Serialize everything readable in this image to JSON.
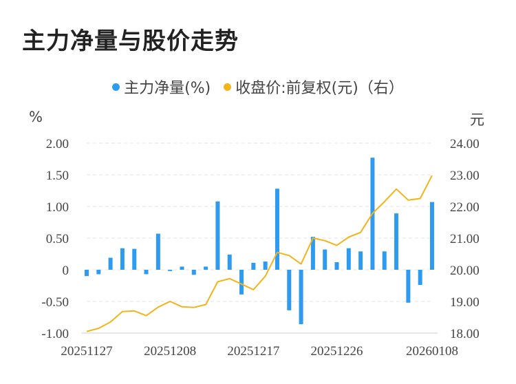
{
  "chart_data": {
    "type": "bar+line",
    "title": "主力净量与股价走势",
    "legend": [
      {
        "name": "主力净量(%)",
        "color": "#2e9bf0"
      },
      {
        "name": "收盘价:前复权(元)（右）",
        "color": "#f2b418"
      }
    ],
    "y_left_unit": "%",
    "y_right_unit": "元",
    "y_left": {
      "min": -1.0,
      "max": 2.0,
      "ticks": [
        "2.00",
        "1.50",
        "1.00",
        "0.50",
        "0",
        "-0.50",
        "-1.00"
      ]
    },
    "y_right": {
      "min": 18.0,
      "max": 24.0,
      "ticks": [
        "24.00",
        "23.00",
        "22.00",
        "21.00",
        "20.00",
        "19.00",
        "18.00"
      ]
    },
    "x_labels": [
      "20251127",
      "20251208",
      "20251217",
      "20251226",
      "20260108"
    ],
    "x_label_indices": [
      0,
      7,
      14,
      21,
      29
    ],
    "series": [
      {
        "name": "主力净量(%)",
        "type": "bar",
        "color": "#2e9bf0",
        "values": [
          -0.1,
          -0.07,
          0.19,
          0.34,
          0.33,
          -0.07,
          0.57,
          -0.02,
          0.05,
          -0.08,
          0.05,
          1.08,
          0.24,
          -0.39,
          0.11,
          0.13,
          1.28,
          -0.64,
          -0.86,
          0.52,
          0.32,
          0.12,
          0.34,
          0.29,
          1.77,
          0.29,
          0.89,
          -0.52,
          -0.24,
          1.07
        ]
      },
      {
        "name": "收盘价:前复权(元)（右）",
        "type": "line",
        "color": "#f2b418",
        "values": [
          18.05,
          18.15,
          18.35,
          18.68,
          18.7,
          18.55,
          18.82,
          19.0,
          18.83,
          18.81,
          18.9,
          19.62,
          19.72,
          19.55,
          19.37,
          19.8,
          20.55,
          20.45,
          20.18,
          21.0,
          20.92,
          20.77,
          21.03,
          21.18,
          21.78,
          22.15,
          22.55,
          22.2,
          22.25,
          22.98
        ]
      }
    ]
  }
}
